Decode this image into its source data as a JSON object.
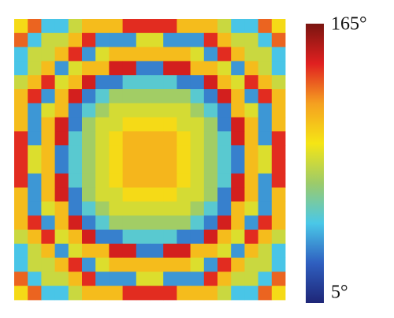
{
  "chart_data": {
    "type": "heatmap",
    "values": [
      [
        100,
        130,
        50,
        50,
        85,
        110,
        110,
        110,
        140,
        140,
        140,
        140,
        110,
        110,
        110,
        85,
        50,
        50,
        130,
        100
      ],
      [
        130,
        50,
        85,
        85,
        110,
        140,
        40,
        40,
        40,
        90,
        90,
        40,
        40,
        40,
        140,
        110,
        85,
        85,
        50,
        130
      ],
      [
        50,
        85,
        85,
        110,
        140,
        40,
        90,
        110,
        110,
        110,
        110,
        110,
        110,
        90,
        40,
        140,
        110,
        85,
        85,
        50
      ],
      [
        50,
        85,
        110,
        40,
        90,
        110,
        110,
        145,
        145,
        35,
        35,
        145,
        145,
        110,
        110,
        90,
        40,
        110,
        85,
        50
      ],
      [
        85,
        110,
        140,
        90,
        110,
        145,
        35,
        35,
        55,
        55,
        55,
        55,
        35,
        35,
        145,
        110,
        90,
        140,
        110,
        85
      ],
      [
        110,
        140,
        40,
        110,
        145,
        35,
        55,
        75,
        75,
        75,
        75,
        75,
        75,
        55,
        35,
        145,
        110,
        40,
        140,
        110
      ],
      [
        110,
        40,
        90,
        110,
        35,
        55,
        75,
        88,
        88,
        88,
        88,
        88,
        88,
        75,
        55,
        35,
        110,
        90,
        40,
        110
      ],
      [
        110,
        40,
        110,
        145,
        35,
        75,
        88,
        88,
        100,
        100,
        100,
        100,
        88,
        88,
        75,
        35,
        145,
        110,
        40,
        110
      ],
      [
        140,
        40,
        110,
        145,
        55,
        75,
        88,
        100,
        112,
        112,
        112,
        112,
        100,
        88,
        75,
        55,
        145,
        110,
        40,
        140
      ],
      [
        140,
        90,
        110,
        35,
        55,
        75,
        88,
        100,
        112,
        112,
        112,
        112,
        100,
        88,
        75,
        55,
        35,
        110,
        90,
        140
      ],
      [
        140,
        90,
        110,
        35,
        55,
        75,
        88,
        100,
        112,
        112,
        112,
        112,
        100,
        88,
        75,
        55,
        35,
        110,
        90,
        140
      ],
      [
        140,
        40,
        110,
        145,
        55,
        75,
        88,
        100,
        112,
        112,
        112,
        112,
        100,
        88,
        75,
        55,
        145,
        110,
        40,
        140
      ],
      [
        110,
        40,
        110,
        145,
        35,
        75,
        88,
        88,
        100,
        100,
        100,
        100,
        88,
        88,
        75,
        35,
        145,
        110,
        40,
        110
      ],
      [
        110,
        40,
        90,
        110,
        35,
        55,
        75,
        88,
        88,
        88,
        88,
        88,
        88,
        75,
        55,
        35,
        110,
        90,
        40,
        110
      ],
      [
        110,
        140,
        40,
        110,
        145,
        35,
        55,
        75,
        75,
        75,
        75,
        75,
        75,
        55,
        35,
        145,
        110,
        40,
        140,
        110
      ],
      [
        85,
        110,
        140,
        90,
        110,
        145,
        35,
        35,
        55,
        55,
        55,
        55,
        35,
        35,
        145,
        110,
        90,
        140,
        110,
        85
      ],
      [
        50,
        85,
        110,
        40,
        90,
        110,
        110,
        145,
        145,
        35,
        35,
        145,
        145,
        110,
        110,
        90,
        40,
        110,
        85,
        50
      ],
      [
        50,
        85,
        85,
        110,
        140,
        40,
        90,
        110,
        110,
        110,
        110,
        110,
        110,
        90,
        40,
        140,
        110,
        85,
        85,
        50
      ],
      [
        130,
        50,
        85,
        85,
        110,
        140,
        40,
        40,
        40,
        90,
        90,
        40,
        40,
        40,
        140,
        110,
        85,
        85,
        50,
        130
      ],
      [
        100,
        130,
        50,
        50,
        85,
        110,
        110,
        110,
        140,
        140,
        140,
        140,
        110,
        110,
        110,
        85,
        50,
        50,
        130,
        100
      ]
    ],
    "colormap": [
      "#1e2677",
      "#2f5fc0",
      "#4ac8e8",
      "#9ccb6a",
      "#f5e515",
      "#f5a020",
      "#e02020",
      "#7a1510"
    ],
    "clim": [
      5,
      165
    ],
    "cticks": [
      {
        "value": 5,
        "label": "5°"
      },
      {
        "value": 165,
        "label": "165°"
      }
    ]
  }
}
